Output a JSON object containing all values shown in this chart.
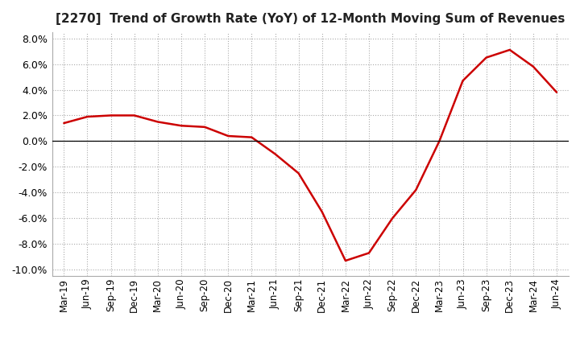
{
  "title": "[2270]  Trend of Growth Rate (YoY) of 12-Month Moving Sum of Revenues",
  "line_color": "#cc0000",
  "background_color": "#ffffff",
  "grid_color": "#aaaaaa",
  "ylim": [
    -0.105,
    0.085
  ],
  "yticks": [
    -0.1,
    -0.08,
    -0.06,
    -0.04,
    -0.02,
    0.0,
    0.02,
    0.04,
    0.06,
    0.08
  ],
  "x_labels": [
    "Mar-19",
    "Jun-19",
    "Sep-19",
    "Dec-19",
    "Mar-20",
    "Jun-20",
    "Sep-20",
    "Dec-20",
    "Mar-21",
    "Jun-21",
    "Sep-21",
    "Dec-21",
    "Mar-22",
    "Jun-22",
    "Sep-22",
    "Dec-22",
    "Mar-23",
    "Jun-23",
    "Sep-23",
    "Dec-23",
    "Mar-24",
    "Jun-24"
  ],
  "x_values": [
    0,
    1,
    2,
    3,
    4,
    5,
    6,
    7,
    8,
    9,
    10,
    11,
    12,
    13,
    14,
    15,
    16,
    17,
    18,
    19,
    20,
    21
  ],
  "y_values": [
    0.014,
    0.019,
    0.02,
    0.02,
    0.015,
    0.012,
    0.011,
    0.004,
    0.003,
    -0.01,
    -0.025,
    -0.055,
    -0.093,
    -0.087,
    -0.06,
    -0.038,
    0.0,
    0.047,
    0.065,
    0.071,
    0.058,
    0.038
  ],
  "title_fontsize": 11,
  "tick_fontsize": 9
}
